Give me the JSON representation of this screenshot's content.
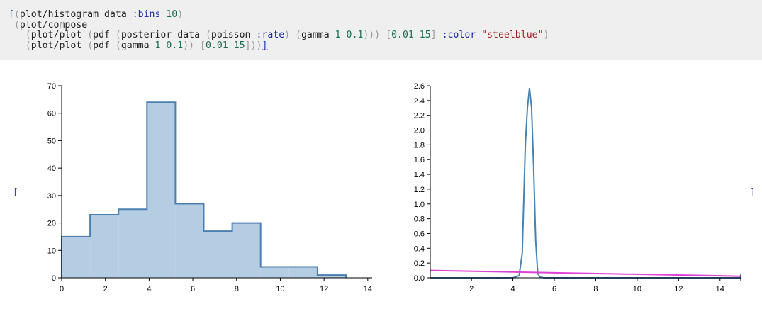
{
  "code": {
    "line1": {
      "open_bracket": "[",
      "open_paren": "(",
      "fn": "plot/histogram data ",
      "kw": ":bins",
      "space": " ",
      "num": "10",
      "close_paren": ")"
    },
    "line2": {
      "open_paren": "(",
      "fn": "plot/compose"
    },
    "line3": {
      "p1": "(",
      "fn1": "plot/plot ",
      "p2": "(",
      "fn2": "pdf ",
      "p3": "(",
      "fn3": "posterior data ",
      "p4": "(",
      "fn4": "poisson ",
      "kw": ":rate",
      "p5": ") ",
      "p6": "(",
      "fn5": "gamma ",
      "n1": "1",
      "s1": " ",
      "n2": "0.1",
      "p7": "))) ",
      "b1": "[",
      "n3": "0.01",
      "s2": " ",
      "n4": "15",
      "b2": "] ",
      "kw2": ":color",
      "s3": " ",
      "str": "\"steelblue\"",
      "p8": ")"
    },
    "line4": {
      "p1": "(",
      "fn1": "plot/plot ",
      "p2": "(",
      "fn2": "pdf ",
      "p3": "(",
      "fn3": "gamma ",
      "n1": "1",
      "s1": " ",
      "n2": "0.1",
      "p4": ")) ",
      "b1": "[",
      "n3": "0.01",
      "s2": " ",
      "n4": "15",
      "b2": "]",
      "p5": "))",
      "b3": "]"
    }
  },
  "result": {
    "open_bracket": "[",
    "close_bracket": "]"
  },
  "colors": {
    "hist_fill": "#b5cde3",
    "hist_stroke": "#4a7fb0",
    "series_steelblue": "#4682b4",
    "series_magenta": "#e040d8"
  },
  "chart_data": [
    {
      "type": "bar",
      "style": "step-histogram",
      "bins": 10,
      "bin_edges": [
        0,
        1.3,
        2.6,
        3.9,
        5.2,
        6.5,
        7.8,
        9.1,
        10.4,
        11.7,
        13.0
      ],
      "values": [
        15,
        23,
        25,
        64,
        27,
        17,
        20,
        4,
        4,
        1
      ],
      "xlim": [
        0,
        14.2
      ],
      "ylim": [
        0,
        70
      ],
      "xticks": [
        "0",
        "2",
        "4",
        "6",
        "8",
        "10",
        "12",
        "14"
      ],
      "yticks": [
        "0",
        "10",
        "20",
        "30",
        "40",
        "50",
        "60",
        "70"
      ],
      "title": "",
      "xlabel": "",
      "ylabel": ""
    },
    {
      "type": "line",
      "xlim": [
        0.01,
        15
      ],
      "ylim": [
        0,
        2.6
      ],
      "xticks": [
        "2",
        "4",
        "6",
        "8",
        "10",
        "12",
        "14"
      ],
      "yticks": [
        "0.0",
        "0.2",
        "0.4",
        "0.6",
        "0.8",
        "1.0",
        "1.2",
        "1.4",
        "1.6",
        "1.8",
        "2.0",
        "2.2",
        "2.4",
        "2.6"
      ],
      "series": [
        {
          "color": "steelblue",
          "x": [
            0.01,
            4.0,
            4.3,
            4.45,
            4.6,
            4.7,
            4.8,
            4.9,
            5.0,
            5.1,
            5.2,
            5.3,
            5.5,
            15
          ],
          "y": [
            0,
            0,
            0.03,
            0.33,
            1.8,
            2.3,
            2.57,
            2.3,
            1.5,
            0.5,
            0.06,
            0.01,
            0,
            0
          ]
        },
        {
          "color": "magenta",
          "x": [
            0.01,
            15
          ],
          "y": [
            0.1,
            0.022
          ]
        }
      ],
      "title": "",
      "xlabel": "",
      "ylabel": ""
    }
  ]
}
